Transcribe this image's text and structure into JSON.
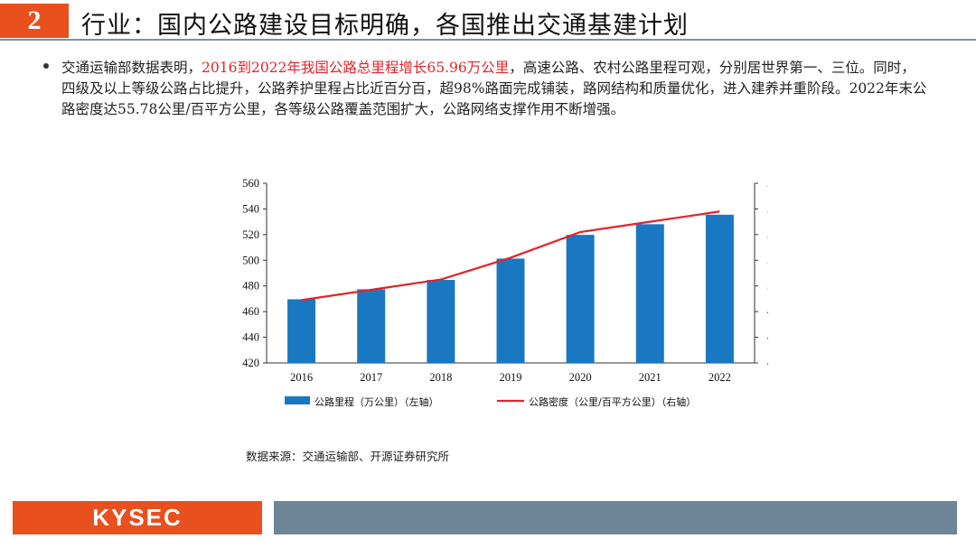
{
  "header": {
    "number": "2",
    "title": "行业：国内公路建设目标明确，各国推出交通基建计划"
  },
  "bullet": {
    "pre": "交通运输部数据表明，",
    "highlight": "2016到2022年我国公路总里程增长65.96万公里",
    "post": "，高速公路、农村公路里程可观，分别居世界第一、三位。同时，四级及以上等级公路占比提升，公路养护里程占比近百分百，超98%路面完成铺装，路网结构和质量优化，进入建养并重阶段。2022年末公路密度达55.78公里/百平方公里，各等级公路覆盖范围扩大，公路网络支撑作用不断增强。"
  },
  "chart_data": {
    "type": "bar",
    "categories": [
      "2016",
      "2017",
      "2018",
      "2019",
      "2020",
      "2021",
      "2022"
    ],
    "series": [
      {
        "name": "公路里程（万公里）（左轴）",
        "type": "bar",
        "axis": "left",
        "values": [
          469.6,
          477.4,
          484.7,
          501.3,
          519.8,
          528.1,
          535.5
        ],
        "color": "#1A78C2"
      },
      {
        "name": "公路密度（公里/百平方公里）（右轴）",
        "type": "line",
        "axis": "right",
        "values": [
          48.9,
          49.7,
          50.5,
          52.2,
          54.2,
          55.0,
          55.8
        ],
        "color": "#E3232B"
      }
    ],
    "y_left": {
      "min": 420,
      "max": 560,
      "ticks": [
        "420",
        "440",
        "460",
        "480",
        "500",
        "520",
        "540",
        "560"
      ]
    },
    "y_right": {
      "min": 44,
      "max": 58,
      "ticks": [
        "44",
        "46",
        "48",
        "50",
        "52",
        "54",
        "56",
        "58"
      ]
    },
    "grid": false,
    "legend_position": "bottom"
  },
  "source": "数据来源：交通运输部、开源证券研究所",
  "footer": {
    "logo": "KYSEC"
  }
}
